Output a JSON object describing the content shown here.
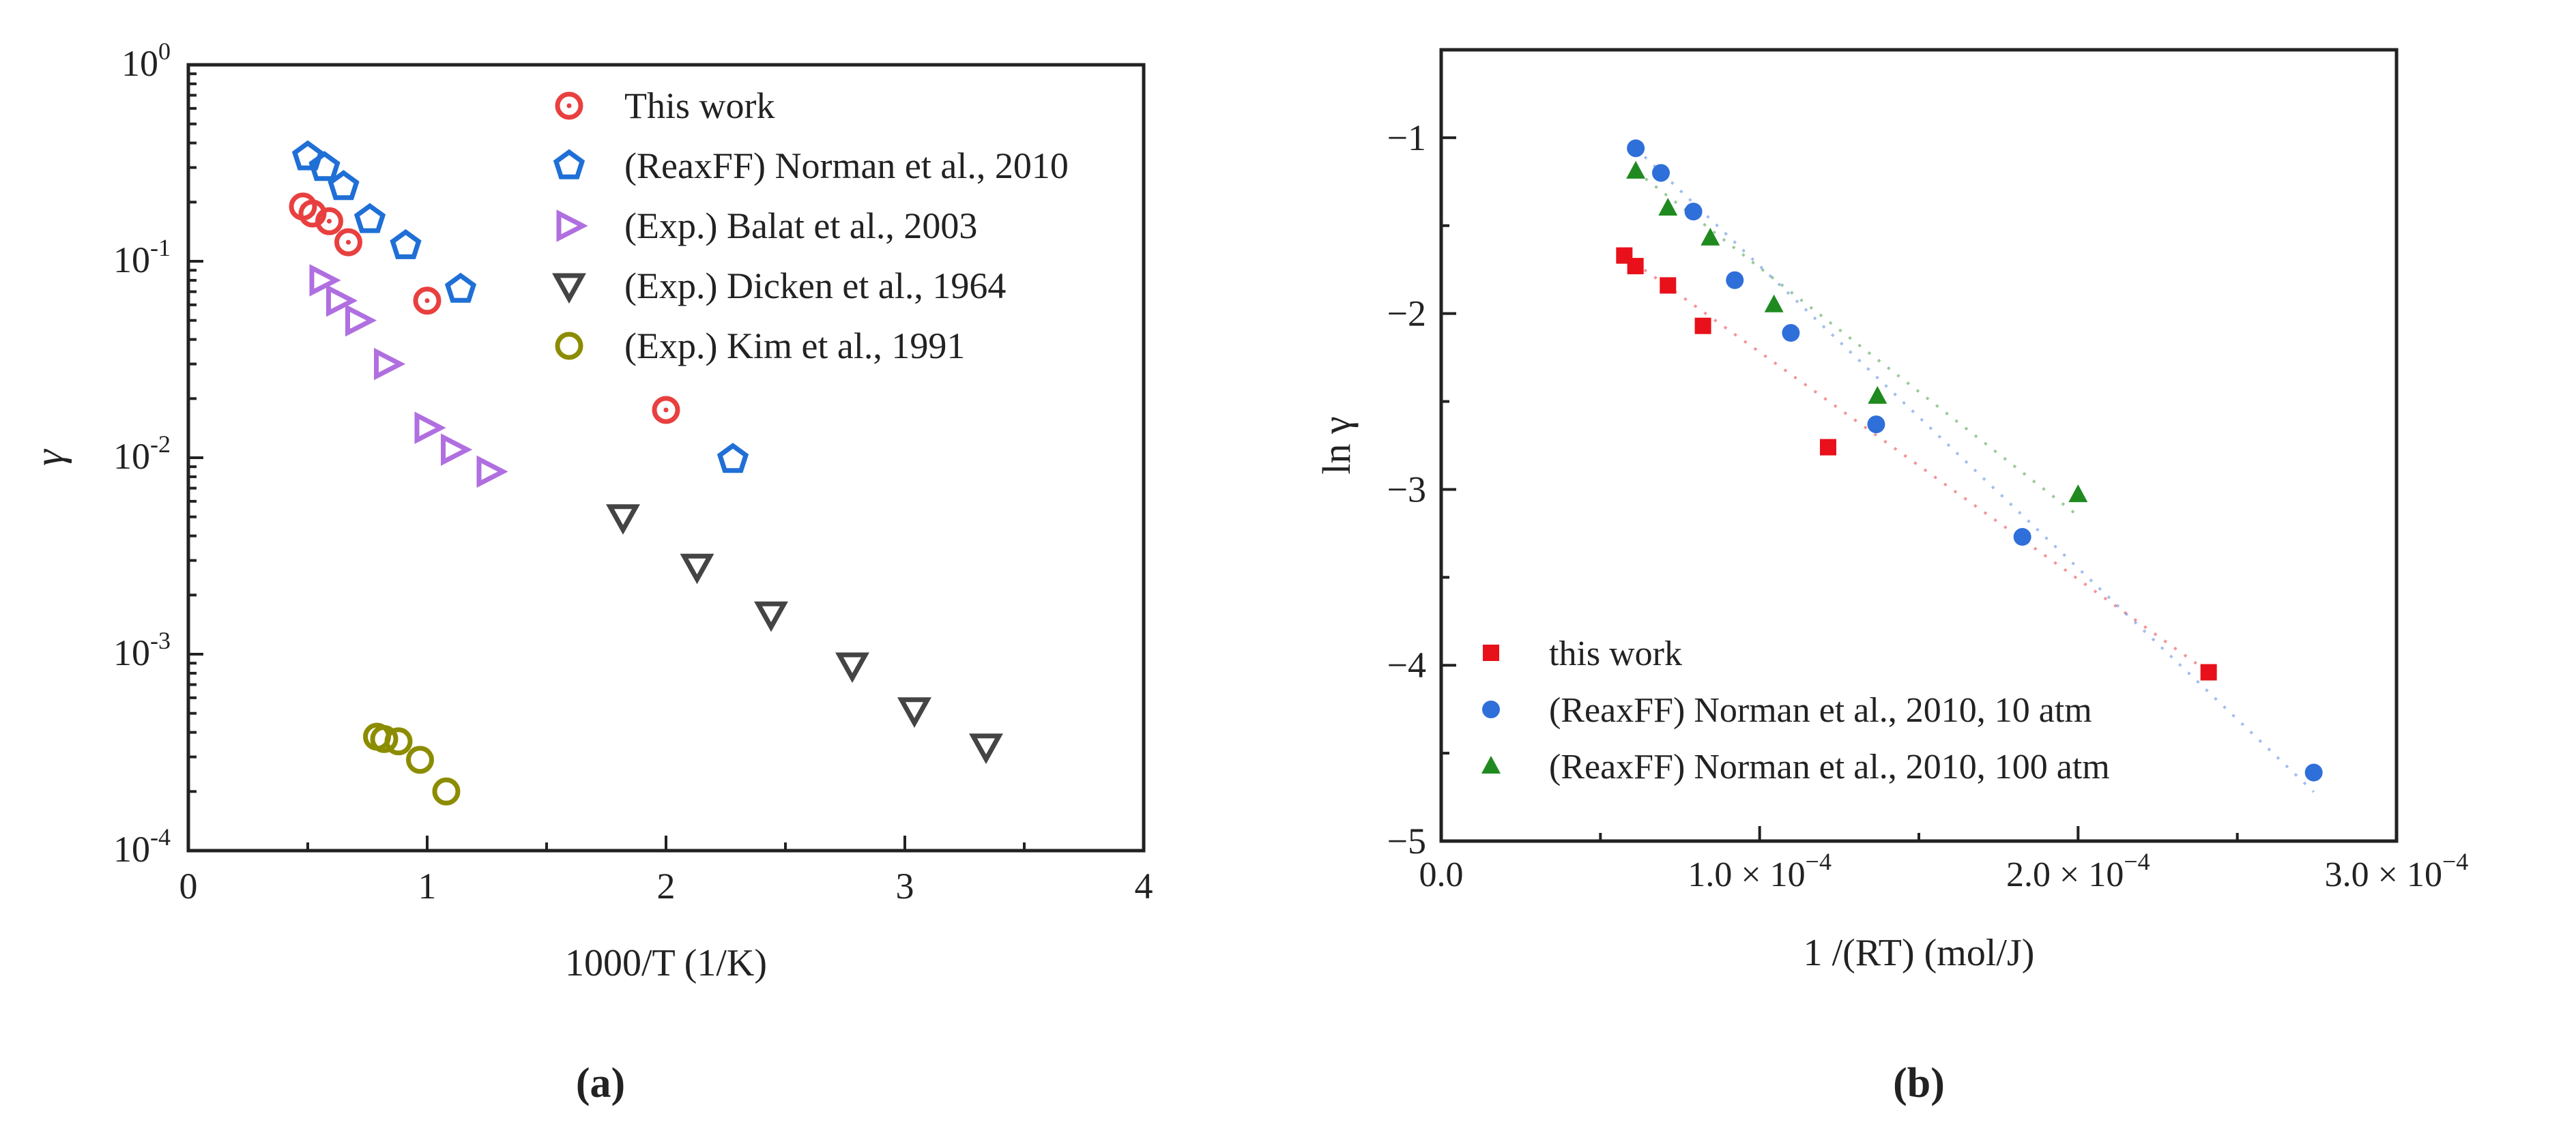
{
  "chart_data": [
    {
      "panel": "a",
      "panel_label": "(a)",
      "type": "scatter",
      "xlabel": "1000/T (1/K)",
      "ylabel": "γ",
      "xscale": "linear",
      "yscale": "log",
      "xlim": [
        0,
        4
      ],
      "ylim": [
        0.0001,
        1
      ],
      "grid": false,
      "legend_position": "top-right",
      "x_ticks": [
        {
          "value": 0,
          "label": "0"
        },
        {
          "value": 1,
          "label": "1"
        },
        {
          "value": 2,
          "label": "2"
        },
        {
          "value": 3,
          "label": "3"
        },
        {
          "value": 4,
          "label": "4"
        }
      ],
      "y_ticks": [
        {
          "value": 1,
          "base": "10",
          "exp": "0"
        },
        {
          "value": 0.1,
          "base": "10",
          "exp": "-1"
        },
        {
          "value": 0.01,
          "base": "10",
          "exp": "-2"
        },
        {
          "value": 0.001,
          "base": "10",
          "exp": "-3"
        },
        {
          "value": 0.0001,
          "base": "10",
          "exp": "-4"
        }
      ],
      "series": [
        {
          "name": "This work",
          "marker": "circle-dot",
          "color": "#e8403f",
          "points": [
            [
              0.48,
              0.19
            ],
            [
              0.52,
              0.175
            ],
            [
              0.59,
              0.16
            ],
            [
              0.67,
              0.125
            ],
            [
              1.0,
              0.063
            ],
            [
              2.0,
              0.0175
            ]
          ]
        },
        {
          "name": "(ReaxFF) Norman et al., 2010",
          "marker": "pentagon",
          "color": "#1f6fd6",
          "points": [
            [
              0.5,
              0.34
            ],
            [
              0.57,
              0.3
            ],
            [
              0.65,
              0.24
            ],
            [
              0.76,
              0.163
            ],
            [
              0.91,
              0.12
            ],
            [
              1.14,
              0.072
            ],
            [
              2.28,
              0.0098
            ]
          ]
        },
        {
          "name": "(Exp.) Balat et al., 2003",
          "marker": "triangle-right",
          "color": "#b06fe0",
          "points": [
            [
              0.56,
              0.08
            ],
            [
              0.63,
              0.063
            ],
            [
              0.71,
              0.05
            ],
            [
              0.83,
              0.03
            ],
            [
              1.0,
              0.0142
            ],
            [
              1.11,
              0.011
            ],
            [
              1.26,
              0.0085
            ]
          ]
        },
        {
          "name": "(Exp.) Dicken et al., 1964",
          "marker": "triangle-down",
          "color": "#444444",
          "points": [
            [
              1.82,
              0.005
            ],
            [
              2.13,
              0.0028
            ],
            [
              2.44,
              0.0016
            ],
            [
              2.78,
              0.00088
            ],
            [
              3.04,
              0.00052
            ],
            [
              3.34,
              0.00034
            ]
          ]
        },
        {
          "name": "(Exp.) Kim et al., 1991",
          "marker": "circle",
          "color": "#8c8c00",
          "points": [
            [
              0.79,
              0.00038
            ],
            [
              0.82,
              0.00037
            ],
            [
              0.88,
              0.00036
            ],
            [
              0.97,
              0.00029
            ],
            [
              1.08,
              0.0002
            ]
          ]
        }
      ]
    },
    {
      "panel": "b",
      "panel_label": "(b)",
      "type": "scatter",
      "xlabel": "1 /(RT) (mol/J)",
      "ylabel": "ln γ",
      "xscale": "linear",
      "yscale": "linear",
      "xlim": [
        0,
        0.0003
      ],
      "ylim": [
        -5,
        -0.5
      ],
      "grid": false,
      "legend_position": "bottom-left",
      "x_ticks": [
        {
          "value": 0,
          "label": "0.0",
          "sci": false
        },
        {
          "value": 0.0001,
          "label": "1.0 × 10",
          "exp": "−4",
          "sci": true
        },
        {
          "value": 0.0002,
          "label": "2.0 × 10",
          "exp": "−4",
          "sci": true
        },
        {
          "value": 0.0003,
          "label": "3.0 × 10",
          "exp": "−4",
          "sci": true
        }
      ],
      "y_ticks": [
        {
          "value": -1,
          "label": "−1"
        },
        {
          "value": -2,
          "label": "−2"
        },
        {
          "value": -3,
          "label": "−3"
        },
        {
          "value": -4,
          "label": "−4"
        },
        {
          "value": -5,
          "label": "−5"
        }
      ],
      "series": [
        {
          "name": "this work",
          "marker": "square",
          "color": "#e8101a",
          "points": [
            [
              5.75e-05,
              -1.67
            ],
            [
              6.1e-05,
              -1.73
            ],
            [
              7.12e-05,
              -1.84
            ],
            [
              8.22e-05,
              -2.07
            ],
            [
              0.0001215,
              -2.76
            ],
            [
              0.000241,
              -4.04
            ]
          ],
          "fit": [
            [
              5.75e-05,
              -1.67
            ],
            [
              0.000241,
              -4.04
            ]
          ]
        },
        {
          "name": "(ReaxFF) Norman et al., 2010, 10 atm",
          "marker": "circle",
          "color": "#2f6fd9",
          "points": [
            [
              6.11e-05,
              -1.06
            ],
            [
              6.9e-05,
              -1.2
            ],
            [
              7.92e-05,
              -1.42
            ],
            [
              9.22e-05,
              -1.81
            ],
            [
              0.0001098,
              -2.11
            ],
            [
              0.0001366,
              -2.63
            ],
            [
              0.0001825,
              -3.27
            ],
            [
              0.000274,
              -4.61
            ]
          ],
          "fit": [
            [
              6.11e-05,
              -1.06
            ],
            [
              0.000274,
              -4.72
            ]
          ]
        },
        {
          "name": "(ReaxFF) Norman et al., 2010, 100 atm",
          "marker": "triangle-up",
          "color": "#1f8a1f",
          "points": [
            [
              6.11e-05,
              -1.19
            ],
            [
              7.12e-05,
              -1.4
            ],
            [
              8.45e-05,
              -1.57
            ],
            [
              0.0001045,
              -1.95
            ],
            [
              0.000137,
              -2.47
            ],
            [
              0.0002,
              -3.03
            ]
          ],
          "fit": [
            [
              6.11e-05,
              -1.19
            ],
            [
              0.0002,
              -3.15
            ]
          ]
        }
      ]
    }
  ]
}
